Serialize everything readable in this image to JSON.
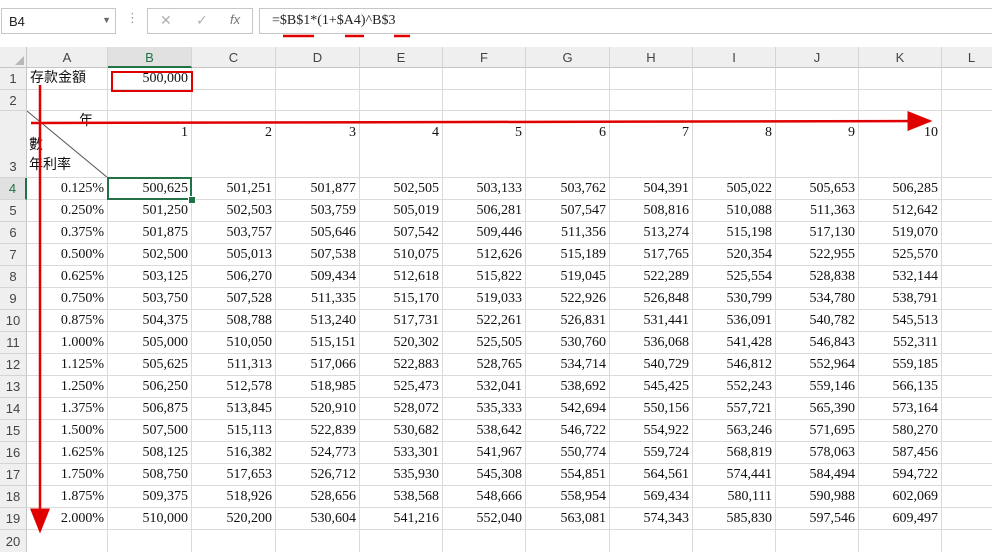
{
  "name_box": "B4",
  "formula_bar": {
    "dots": "⋮",
    "cancel_icon": "✕",
    "enter_icon": "✓",
    "fx_label": "fx",
    "formula": "=$B$1*(1+$A4)^B$3"
  },
  "columns": [
    "A",
    "B",
    "C",
    "D",
    "E",
    "F",
    "G",
    "H",
    "I",
    "J",
    "K",
    "L"
  ],
  "row_numbers": [
    "1",
    "2",
    "3",
    "4",
    "5",
    "6",
    "7",
    "8",
    "9",
    "10",
    "11",
    "12",
    "13",
    "14",
    "15",
    "16",
    "17",
    "18",
    "19",
    "20"
  ],
  "sheet": {
    "a1_label": "存款金額",
    "b1_value": "500,000",
    "header_year": "年",
    "header_count": "數",
    "header_rate": "年利率",
    "years": [
      "1",
      "2",
      "3",
      "4",
      "5",
      "6",
      "7",
      "8",
      "9",
      "10"
    ],
    "rates": [
      "0.125%",
      "0.250%",
      "0.375%",
      "0.500%",
      "0.625%",
      "0.750%",
      "0.875%",
      "1.000%",
      "1.125%",
      "1.250%",
      "1.375%",
      "1.500%",
      "1.625%",
      "1.750%",
      "1.875%",
      "2.000%"
    ],
    "values": [
      [
        "500,625",
        "501,251",
        "501,877",
        "502,505",
        "503,133",
        "503,762",
        "504,391",
        "505,022",
        "505,653",
        "506,285"
      ],
      [
        "501,250",
        "502,503",
        "503,759",
        "505,019",
        "506,281",
        "507,547",
        "508,816",
        "510,088",
        "511,363",
        "512,642"
      ],
      [
        "501,875",
        "503,757",
        "505,646",
        "507,542",
        "509,446",
        "511,356",
        "513,274",
        "515,198",
        "517,130",
        "519,070"
      ],
      [
        "502,500",
        "505,013",
        "507,538",
        "510,075",
        "512,626",
        "515,189",
        "517,765",
        "520,354",
        "522,955",
        "525,570"
      ],
      [
        "503,125",
        "506,270",
        "509,434",
        "512,618",
        "515,822",
        "519,045",
        "522,289",
        "525,554",
        "528,838",
        "532,144"
      ],
      [
        "503,750",
        "507,528",
        "511,335",
        "515,170",
        "519,033",
        "522,926",
        "526,848",
        "530,799",
        "534,780",
        "538,791"
      ],
      [
        "504,375",
        "508,788",
        "513,240",
        "517,731",
        "522,261",
        "526,831",
        "531,441",
        "536,091",
        "540,782",
        "545,513"
      ],
      [
        "505,000",
        "510,050",
        "515,151",
        "520,302",
        "525,505",
        "530,760",
        "536,068",
        "541,428",
        "546,843",
        "552,311"
      ],
      [
        "505,625",
        "511,313",
        "517,066",
        "522,883",
        "528,765",
        "534,714",
        "540,729",
        "546,812",
        "552,964",
        "559,185"
      ],
      [
        "506,250",
        "512,578",
        "518,985",
        "525,473",
        "532,041",
        "538,692",
        "545,425",
        "552,243",
        "559,146",
        "566,135"
      ],
      [
        "506,875",
        "513,845",
        "520,910",
        "528,072",
        "535,333",
        "542,694",
        "550,156",
        "557,721",
        "565,390",
        "573,164"
      ],
      [
        "507,500",
        "515,113",
        "522,839",
        "530,682",
        "538,642",
        "546,722",
        "554,922",
        "563,246",
        "571,695",
        "580,270"
      ],
      [
        "508,125",
        "516,382",
        "524,773",
        "533,301",
        "541,967",
        "550,774",
        "559,724",
        "568,819",
        "578,063",
        "587,456"
      ],
      [
        "508,750",
        "517,653",
        "526,712",
        "535,930",
        "545,308",
        "554,851",
        "564,561",
        "574,441",
        "584,494",
        "594,722"
      ],
      [
        "509,375",
        "518,926",
        "528,656",
        "538,568",
        "548,666",
        "558,954",
        "569,434",
        "580,111",
        "590,988",
        "602,069"
      ],
      [
        "510,000",
        "520,200",
        "530,604",
        "541,216",
        "552,040",
        "563,081",
        "574,343",
        "585,830",
        "597,546",
        "609,497"
      ]
    ]
  },
  "colors": {
    "accent_green": "#217346",
    "annotation_red": "#e00000",
    "header_bg": "#efefef",
    "gridline": "#dadada"
  }
}
